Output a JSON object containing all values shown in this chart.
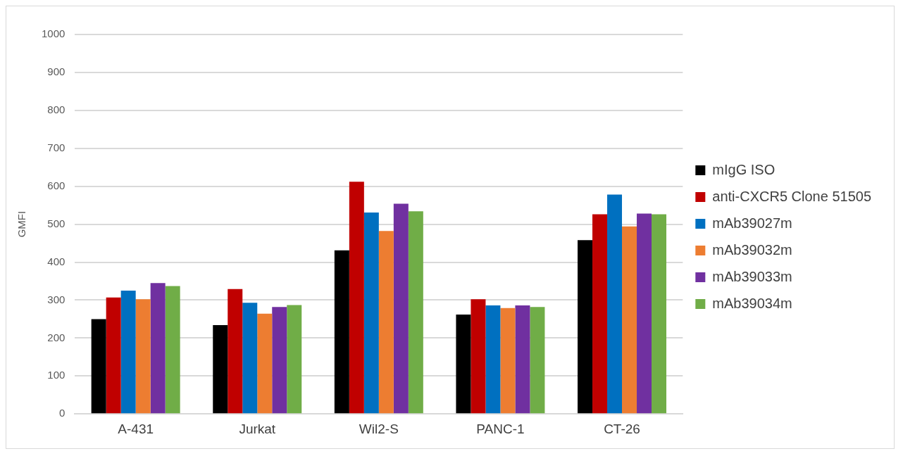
{
  "chart_data": {
    "type": "bar",
    "ylabel": "GMFI",
    "categories": [
      "A-431",
      "Jurkat",
      "Wil2-S",
      "PANC-1",
      "CT-26"
    ],
    "series": [
      {
        "name": "mIgG ISO",
        "color": "#000000",
        "values": [
          250,
          234,
          431,
          262,
          458
        ]
      },
      {
        "name": "anti-CXCR5 Clone 51505",
        "color": "#c00000",
        "values": [
          307,
          329,
          612,
          302,
          526
        ]
      },
      {
        "name": "mAb39027m",
        "color": "#0070c0",
        "values": [
          325,
          293,
          531,
          286,
          578
        ]
      },
      {
        "name": "mAb39032m",
        "color": "#ed7d31",
        "values": [
          302,
          264,
          482,
          279,
          494
        ]
      },
      {
        "name": "mAb39033m",
        "color": "#7030a0",
        "values": [
          345,
          282,
          554,
          286,
          528
        ]
      },
      {
        "name": "mAb39034m",
        "color": "#70ad47",
        "values": [
          337,
          287,
          534,
          282,
          526
        ]
      }
    ],
    "ylim": [
      0,
      1000
    ],
    "yticks": [
      0,
      100,
      200,
      300,
      400,
      500,
      600,
      700,
      800,
      900,
      1000
    ],
    "grid": "y",
    "legend": "right"
  }
}
